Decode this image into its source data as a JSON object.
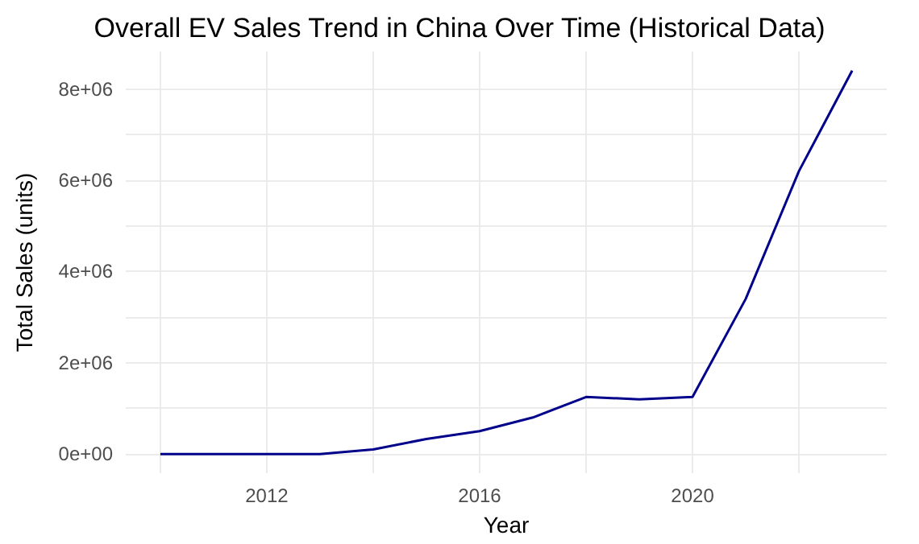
{
  "chart_data": {
    "type": "line",
    "title": "Overall EV Sales Trend in China Over Time (Historical Data)",
    "xlabel": "Year",
    "ylabel": "Total Sales (units)",
    "x": [
      2010,
      2011,
      2012,
      2013,
      2014,
      2015,
      2016,
      2017,
      2018,
      2019,
      2020,
      2021,
      2022,
      2023
    ],
    "series": [
      {
        "color": "#00008b",
        "values": [
          0,
          0,
          0,
          0,
          100000,
          330000,
          500000,
          800000,
          1250000,
          1200000,
          1250000,
          3400000,
          6200000,
          8400000
        ]
      }
    ],
    "xlim": [
      2009.35,
      2023.65
    ],
    "ylim": [
      -420000,
      8820000
    ],
    "xticks": [
      {
        "value": 2010,
        "label": null
      },
      2012,
      {
        "value": 2014,
        "label": null
      },
      2016,
      {
        "value": 2018,
        "label": null
      },
      2020,
      {
        "value": 2022,
        "label": null
      }
    ],
    "yticks": [
      {
        "value": 0,
        "label": "0e+00"
      },
      {
        "value": 1000000,
        "label": null
      },
      {
        "value": 2000000,
        "label": "2e+06"
      },
      {
        "value": 3000000,
        "label": null
      },
      {
        "value": 4000000,
        "label": "4e+06"
      },
      {
        "value": 5000000,
        "label": null
      },
      {
        "value": 6000000,
        "label": "6e+06"
      },
      {
        "value": 7000000,
        "label": null
      },
      {
        "value": 8000000,
        "label": "8e+06"
      }
    ],
    "grid": true,
    "marker": "none",
    "line_style": "solid"
  }
}
